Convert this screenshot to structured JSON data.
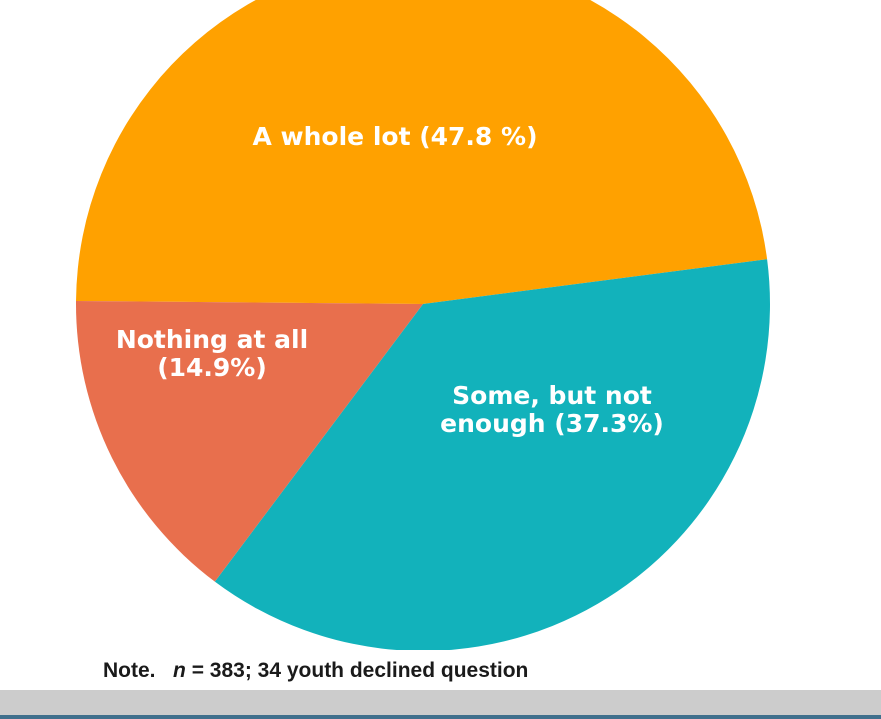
{
  "chart_data": {
    "type": "pie",
    "slices": [
      {
        "label_lines": [
          "A whole lot (47.8 %)"
        ],
        "value": 47.8,
        "color": "#FFA100"
      },
      {
        "label_lines": [
          "Some, but not",
          "enough (37.3%)"
        ],
        "value": 37.3,
        "color": "#12B2BB"
      },
      {
        "label_lines": [
          "Nothing at all",
          "(14.9%)"
        ],
        "value": 14.9,
        "color": "#E86F4D"
      }
    ],
    "start_angle_deg": 179.5,
    "direction": "clockwise",
    "grid": false,
    "legend": "none"
  },
  "note": {
    "prefix": "Note.",
    "n_label": "n",
    "rest": " = 383; 34 youth declined question"
  },
  "colors": {
    "footer_bar": "#CCCCCC",
    "footer_line": "#3F6F8C",
    "label_text": "#FFFFFF"
  }
}
